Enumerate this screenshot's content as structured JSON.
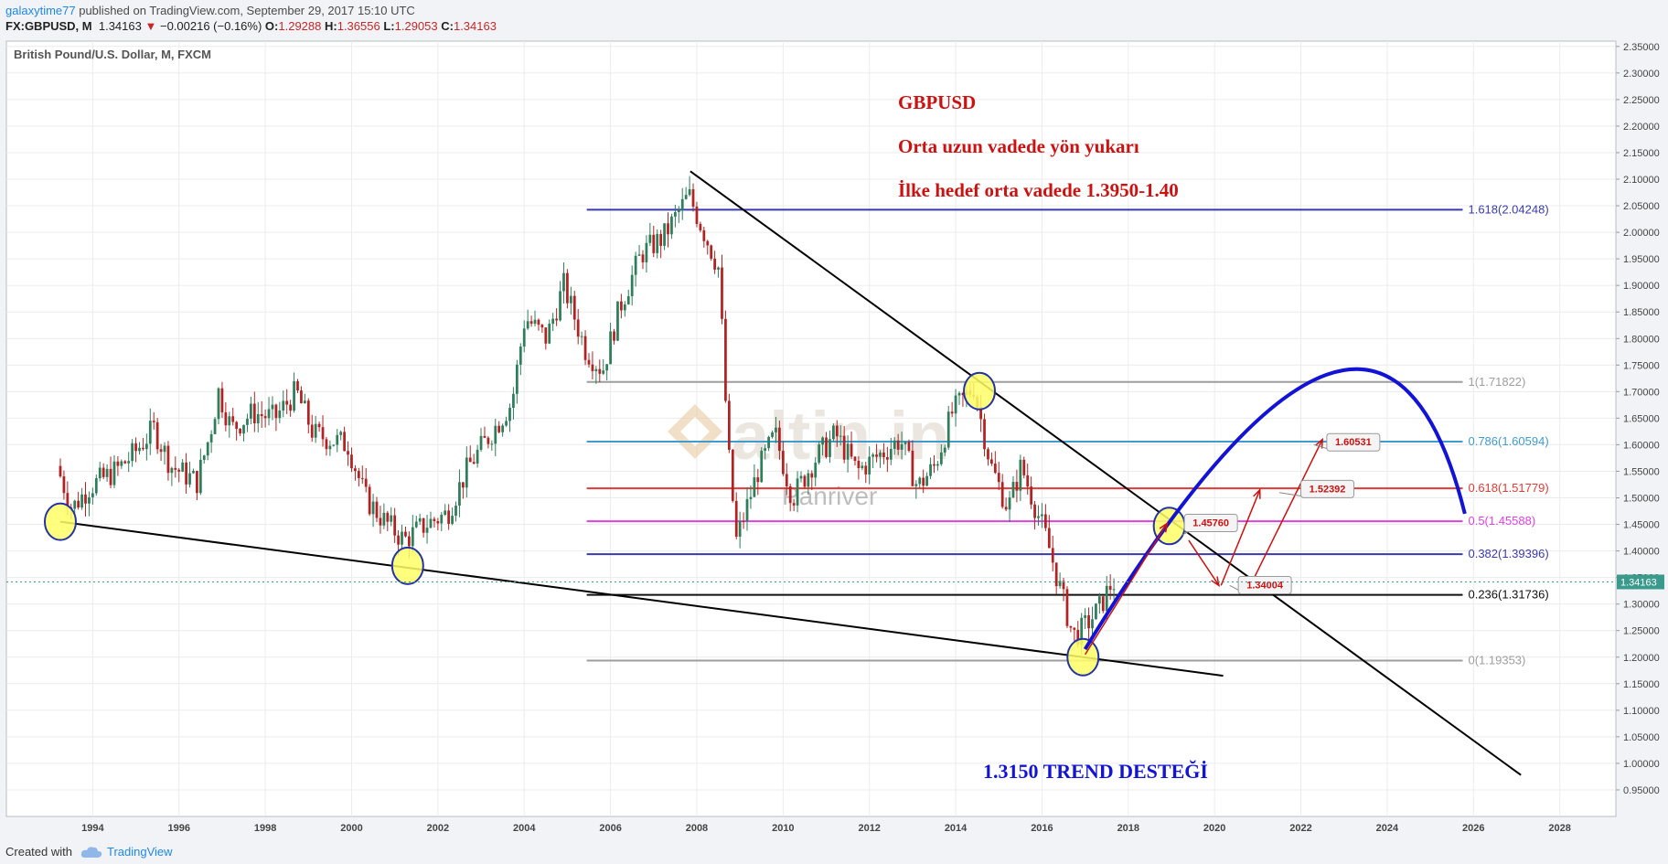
{
  "header": {
    "user": "galaxytime77",
    "published": " published on TradingView.com, September 29, 2017 15:10 UTC",
    "symbol": "FX:GBPUSD, M",
    "last": "1.34163",
    "change_arrow": "▼",
    "change": "−0.00216 (−0.16%)",
    "open_label": "O:",
    "open": "1.29288",
    "high_label": "H:",
    "high": "1.36556",
    "low_label": "L:",
    "low": "1.29053",
    "close_label": "C:",
    "close": "1.34163"
  },
  "footer": {
    "created": "Created with",
    "brand": "TradingView"
  },
  "colors": {
    "background": "#ffffff",
    "grid": "#ececec",
    "up": "#2e7d5b",
    "down": "#b22222",
    "fib_blue": "#3a3ab0",
    "fib_gray": "#9e9e9e",
    "fib_cyan": "#3f9ccf",
    "fib_red": "#e53935",
    "fib_magenta": "#e040e0",
    "fib_black": "#111111",
    "arc": "#1313d6",
    "annotation_red": "#cc1111"
  },
  "chart_data": {
    "type": "candlestick",
    "title": "British Pound/U.S. Dollar, M, FXCM",
    "x_ticks": [
      "1994",
      "1996",
      "1998",
      "2000",
      "2002",
      "2004",
      "2006",
      "2008",
      "2010",
      "2012",
      "2014",
      "2016",
      "2018",
      "2020",
      "2022",
      "2024",
      "2026",
      "2028"
    ],
    "x_range": [
      1992.0,
      2029.3
    ],
    "y_ticks": [
      "2.35000",
      "2.30000",
      "2.25000",
      "2.20000",
      "2.15000",
      "2.10000",
      "2.05000",
      "2.00000",
      "1.95000",
      "1.90000",
      "1.85000",
      "1.80000",
      "1.75000",
      "1.70000",
      "1.65000",
      "1.60000",
      "1.55000",
      "1.50000",
      "1.45000",
      "1.40000",
      "1.35000",
      "1.30000",
      "1.25000",
      "1.20000",
      "1.15000",
      "1.10000",
      "1.05000",
      "1.00000",
      "0.95000"
    ],
    "y_range": [
      0.9,
      2.36
    ],
    "last_price": "1.34163",
    "price_path": [
      [
        1993.25,
        1.56
      ],
      [
        1993.6,
        1.48
      ],
      [
        1994.0,
        1.52
      ],
      [
        1994.6,
        1.55
      ],
      [
        1995.0,
        1.58
      ],
      [
        1995.5,
        1.63
      ],
      [
        1995.9,
        1.56
      ],
      [
        1996.5,
        1.53
      ],
      [
        1996.8,
        1.62
      ],
      [
        1997.0,
        1.7
      ],
      [
        1997.3,
        1.63
      ],
      [
        1997.8,
        1.66
      ],
      [
        1998.3,
        1.65
      ],
      [
        1998.8,
        1.7
      ],
      [
        1999.2,
        1.62
      ],
      [
        1999.6,
        1.61
      ],
      [
        2000.0,
        1.6
      ],
      [
        2000.4,
        1.5
      ],
      [
        2000.8,
        1.46
      ],
      [
        2001.3,
        1.42
      ],
      [
        2001.8,
        1.45
      ],
      [
        2002.3,
        1.47
      ],
      [
        2002.8,
        1.56
      ],
      [
        2003.3,
        1.62
      ],
      [
        2003.8,
        1.68
      ],
      [
        2004.1,
        1.84
      ],
      [
        2004.6,
        1.8
      ],
      [
        2005.0,
        1.9
      ],
      [
        2005.5,
        1.78
      ],
      [
        2005.9,
        1.74
      ],
      [
        2006.3,
        1.86
      ],
      [
        2006.8,
        1.96
      ],
      [
        2007.3,
        1.99
      ],
      [
        2007.9,
        2.07
      ],
      [
        2008.3,
        1.99
      ],
      [
        2008.6,
        1.93
      ],
      [
        2008.8,
        1.6
      ],
      [
        2009.0,
        1.42
      ],
      [
        2009.5,
        1.55
      ],
      [
        2009.9,
        1.62
      ],
      [
        2010.3,
        1.5
      ],
      [
        2010.8,
        1.57
      ],
      [
        2011.3,
        1.62
      ],
      [
        2011.8,
        1.55
      ],
      [
        2012.3,
        1.58
      ],
      [
        2012.8,
        1.61
      ],
      [
        2013.2,
        1.52
      ],
      [
        2013.6,
        1.56
      ],
      [
        2014.0,
        1.66
      ],
      [
        2014.5,
        1.71
      ],
      [
        2014.9,
        1.56
      ],
      [
        2015.3,
        1.48
      ],
      [
        2015.6,
        1.56
      ],
      [
        2015.9,
        1.49
      ],
      [
        2016.2,
        1.42
      ],
      [
        2016.5,
        1.33
      ],
      [
        2016.8,
        1.24
      ],
      [
        2017.0,
        1.25
      ],
      [
        2017.4,
        1.29
      ],
      [
        2017.7,
        1.34
      ]
    ],
    "fibonacci_levels": [
      {
        "label": "1.618(2.04248)",
        "value": 2.04248
      },
      {
        "label": "1(1.71822)",
        "value": 1.71822
      },
      {
        "label": "0.786(1.60594)",
        "value": 1.60594
      },
      {
        "label": "0.618(1.51779)",
        "value": 1.51779
      },
      {
        "label": "0.5(1.45588)",
        "value": 1.45588
      },
      {
        "label": "0.382(1.39396)",
        "value": 1.39396
      },
      {
        "label": "0.236(1.31736)",
        "value": 1.31736
      },
      {
        "label": "0(1.19353)",
        "value": 1.19353
      }
    ],
    "trendlines": [
      {
        "name": "support",
        "from": [
          1993.25,
          1.455
        ],
        "to": [
          2020.2,
          1.165
        ]
      },
      {
        "name": "resistance",
        "from": [
          2007.85,
          2.115
        ],
        "to": [
          2027.1,
          0.978
        ]
      }
    ],
    "circles": [
      [
        1993.25,
        1.455
      ],
      [
        2001.3,
        1.372
      ],
      [
        2014.55,
        1.701
      ],
      [
        2016.95,
        1.2
      ],
      [
        2018.95,
        1.447
      ]
    ],
    "projection_arc": {
      "start": [
        2017.0,
        1.215
      ],
      "peak": [
        2022.6,
        1.732
      ],
      "end": [
        2025.8,
        1.47
      ]
    },
    "callouts": [
      {
        "label": "1.45760",
        "price": 1.4576
      },
      {
        "label": "1.34004",
        "price": 1.34004
      },
      {
        "label": "1.52392",
        "price": 1.52392
      },
      {
        "label": "1.60531",
        "price": 1.60531
      }
    ],
    "annotations": {
      "line1": "GBPUSD",
      "line2": "Orta uzun vadede yön yukarı",
      "line3": "İlke hedef orta vadede 1.3950-1.40",
      "support_note": "1.3150 TREND DESTEĞİ"
    },
    "watermark": {
      "brand": "altin.in",
      "sub": "Panriver"
    }
  }
}
